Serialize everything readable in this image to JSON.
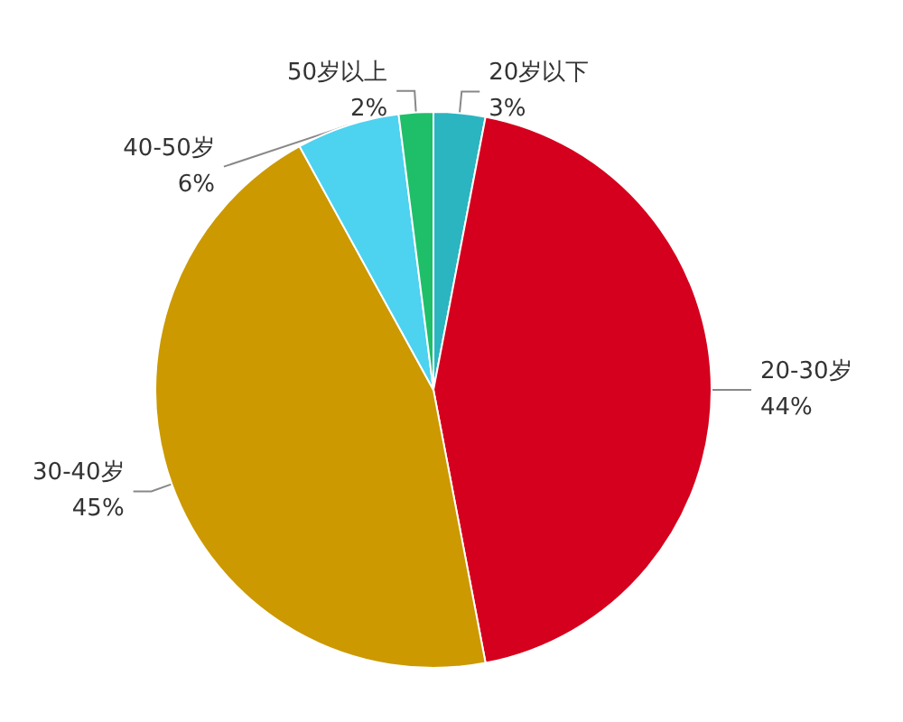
{
  "chart_data": {
    "type": "pie",
    "categories": [
      "20岁以下",
      "20-30岁",
      "30-40岁",
      "40-50岁",
      "50岁以上"
    ],
    "values": [
      3,
      44,
      45,
      6,
      2
    ],
    "value_labels": [
      "3%",
      "44%",
      "45%",
      "6%",
      "2%"
    ],
    "colors": [
      "#2bb5c0",
      "#d5001d",
      "#cc9900",
      "#4dd2f0",
      "#1fbf6a"
    ],
    "legend": false
  }
}
